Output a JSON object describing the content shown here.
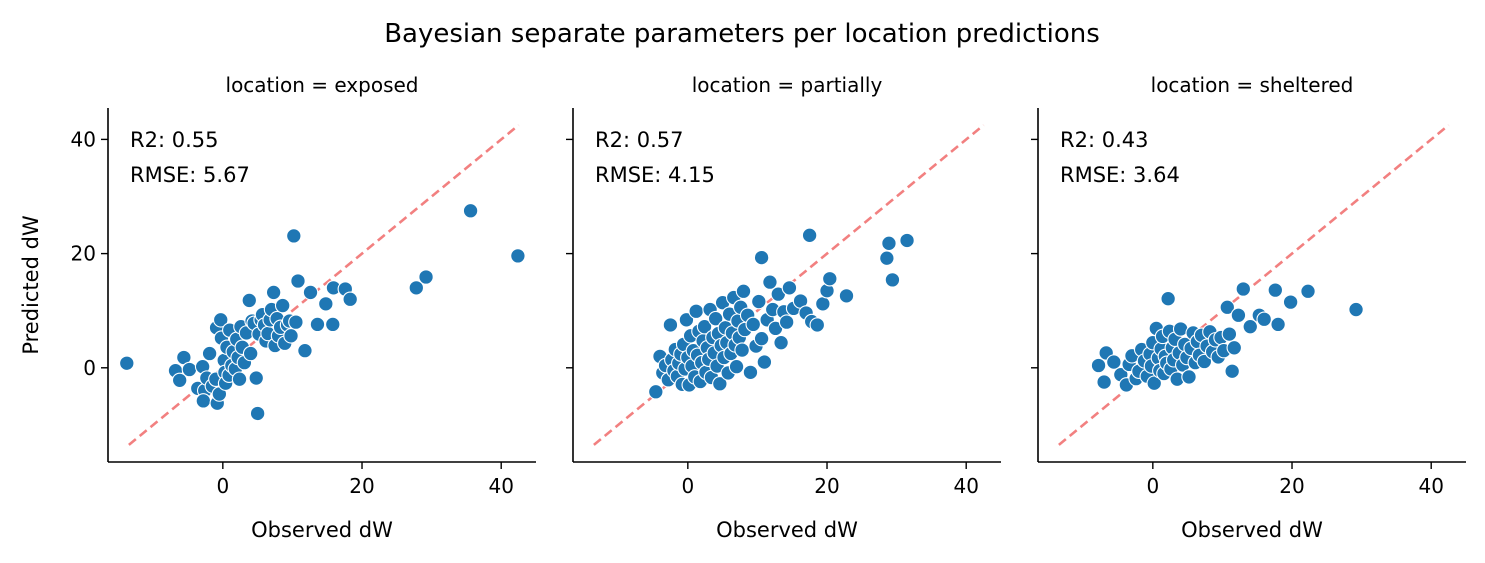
{
  "title": "Bayesian separate parameters per location predictions",
  "chart_data": {
    "type": "scatter",
    "title": "Bayesian separate parameters per location predictions",
    "xlabel": "Observed dW",
    "ylabel": "Predicted dW",
    "xlim": [
      -16.5,
      45
    ],
    "ylim": [
      -16.5,
      45.5
    ],
    "xticks": [
      0,
      20,
      40
    ],
    "yticks": [
      0,
      20,
      40
    ],
    "sharey": true,
    "grid": false,
    "reference_line": {
      "style": "dashed",
      "color": "#f28080",
      "from": [
        -13.5,
        -13.5
      ],
      "to": [
        42.5,
        42.5
      ]
    },
    "marker_color": "#1f77b4",
    "panels": [
      {
        "title": "location = exposed",
        "r2_label": "R2: 0.55",
        "rmse_label": "RMSE: 5.67",
        "points": [
          [
            -13.8,
            0.8
          ],
          [
            -6.8,
            -0.5
          ],
          [
            -6.2,
            -2.2
          ],
          [
            -5.6,
            1.8
          ],
          [
            -4.8,
            -0.3
          ],
          [
            -3.6,
            -3.6
          ],
          [
            -2.9,
            0.2
          ],
          [
            -2.6,
            -4.0
          ],
          [
            -2.8,
            -5.8
          ],
          [
            -2.3,
            -1.8
          ],
          [
            -1.9,
            2.5
          ],
          [
            -1.5,
            -3.2
          ],
          [
            -1.0,
            -2.0
          ],
          [
            -0.9,
            7.0
          ],
          [
            -0.8,
            -6.2
          ],
          [
            -0.5,
            -4.6
          ],
          [
            -0.3,
            8.4
          ],
          [
            -0.2,
            5.2
          ],
          [
            0.2,
            1.3
          ],
          [
            0.3,
            -0.8
          ],
          [
            0.4,
            -2.7
          ],
          [
            0.6,
            3.6
          ],
          [
            0.9,
            -1.3
          ],
          [
            1.0,
            6.6
          ],
          [
            1.3,
            0.4
          ],
          [
            1.5,
            2.8
          ],
          [
            1.8,
            -0.2
          ],
          [
            2.0,
            5.0
          ],
          [
            2.2,
            1.8
          ],
          [
            2.4,
            -2.0
          ],
          [
            2.6,
            7.2
          ],
          [
            2.8,
            3.6
          ],
          [
            3.1,
            0.9
          ],
          [
            3.4,
            6.1
          ],
          [
            3.8,
            11.8
          ],
          [
            4.0,
            2.5
          ],
          [
            4.2,
            8.2
          ],
          [
            4.5,
            7.8
          ],
          [
            4.8,
            -1.8
          ],
          [
            5.0,
            -8.0
          ],
          [
            5.2,
            5.9
          ],
          [
            5.5,
            8.4
          ],
          [
            5.7,
            9.3
          ],
          [
            6.0,
            7.5
          ],
          [
            6.2,
            4.7
          ],
          [
            6.5,
            6.0
          ],
          [
            6.8,
            8.4
          ],
          [
            7.0,
            10.2
          ],
          [
            7.3,
            13.2
          ],
          [
            7.5,
            3.9
          ],
          [
            7.8,
            8.6
          ],
          [
            8.0,
            5.6
          ],
          [
            8.3,
            7.1
          ],
          [
            8.6,
            10.9
          ],
          [
            8.9,
            4.3
          ],
          [
            9.3,
            7.5
          ],
          [
            9.6,
            8.2
          ],
          [
            9.8,
            5.6
          ],
          [
            10.2,
            23.1
          ],
          [
            10.5,
            8.0
          ],
          [
            10.8,
            15.2
          ],
          [
            11.8,
            3.0
          ],
          [
            12.6,
            13.2
          ],
          [
            13.6,
            7.6
          ],
          [
            14.8,
            11.2
          ],
          [
            15.8,
            7.6
          ],
          [
            15.9,
            14.0
          ],
          [
            17.6,
            13.8
          ],
          [
            18.3,
            12.0
          ],
          [
            27.8,
            14.0
          ],
          [
            29.2,
            15.9
          ],
          [
            35.6,
            27.5
          ],
          [
            42.4,
            19.6
          ]
        ]
      },
      {
        "title": "location = partially",
        "r2_label": "R2: 0.57",
        "rmse_label": "RMSE: 4.15",
        "points": [
          [
            -4.6,
            -4.2
          ],
          [
            -4.0,
            2.0
          ],
          [
            -3.6,
            -0.9
          ],
          [
            -3.2,
            0.4
          ],
          [
            -2.8,
            -2.1
          ],
          [
            -2.5,
            7.5
          ],
          [
            -2.3,
            1.4
          ],
          [
            -2.0,
            -0.5
          ],
          [
            -1.8,
            3.2
          ],
          [
            -1.5,
            -1.5
          ],
          [
            -1.3,
            0.8
          ],
          [
            -1.0,
            2.4
          ],
          [
            -0.8,
            -2.9
          ],
          [
            -0.6,
            4.1
          ],
          [
            -0.4,
            -0.2
          ],
          [
            -0.2,
            8.4
          ],
          [
            0.0,
            1.8
          ],
          [
            0.2,
            -3.0
          ],
          [
            0.4,
            5.6
          ],
          [
            0.6,
            0.3
          ],
          [
            0.8,
            3.0
          ],
          [
            1.0,
            -1.6
          ],
          [
            1.2,
            9.9
          ],
          [
            1.4,
            2.2
          ],
          [
            1.6,
            6.4
          ],
          [
            1.8,
            -2.4
          ],
          [
            2.0,
            0.9
          ],
          [
            2.2,
            4.7
          ],
          [
            2.4,
            7.2
          ],
          [
            2.6,
            -0.8
          ],
          [
            2.8,
            3.5
          ],
          [
            3.0,
            1.5
          ],
          [
            3.2,
            10.2
          ],
          [
            3.4,
            -1.7
          ],
          [
            3.6,
            5.3
          ],
          [
            3.8,
            2.6
          ],
          [
            4.0,
            8.6
          ],
          [
            4.2,
            0.3
          ],
          [
            4.4,
            6.0
          ],
          [
            4.6,
            -2.8
          ],
          [
            4.8,
            3.9
          ],
          [
            5.0,
            11.4
          ],
          [
            5.2,
            1.8
          ],
          [
            5.4,
            7.0
          ],
          [
            5.6,
            4.4
          ],
          [
            5.8,
            -0.9
          ],
          [
            6.0,
            9.4
          ],
          [
            6.2,
            2.5
          ],
          [
            6.4,
            6.1
          ],
          [
            6.6,
            12.3
          ],
          [
            6.8,
            4.0
          ],
          [
            7.0,
            0.2
          ],
          [
            7.2,
            8.2
          ],
          [
            7.4,
            5.3
          ],
          [
            7.6,
            10.6
          ],
          [
            7.8,
            3.1
          ],
          [
            8.0,
            13.4
          ],
          [
            8.2,
            6.7
          ],
          [
            8.6,
            9.2
          ],
          [
            9.0,
            -0.8
          ],
          [
            9.4,
            7.6
          ],
          [
            9.8,
            3.8
          ],
          [
            10.2,
            11.6
          ],
          [
            10.6,
            5.1
          ],
          [
            10.6,
            19.3
          ],
          [
            11.0,
            1.0
          ],
          [
            11.4,
            8.4
          ],
          [
            11.8,
            15.0
          ],
          [
            12.2,
            10.2
          ],
          [
            12.6,
            6.9
          ],
          [
            13.0,
            12.9
          ],
          [
            13.4,
            4.4
          ],
          [
            13.8,
            9.8
          ],
          [
            14.2,
            8.0
          ],
          [
            14.6,
            14.0
          ],
          [
            15.2,
            10.4
          ],
          [
            16.2,
            11.7
          ],
          [
            17.0,
            9.6
          ],
          [
            17.5,
            23.2
          ],
          [
            17.8,
            8.1
          ],
          [
            18.6,
            7.5
          ],
          [
            19.4,
            11.2
          ],
          [
            20.0,
            13.5
          ],
          [
            20.4,
            15.6
          ],
          [
            22.8,
            12.6
          ],
          [
            28.6,
            19.2
          ],
          [
            28.9,
            21.8
          ],
          [
            29.4,
            15.4
          ],
          [
            31.5,
            22.3
          ]
        ]
      },
      {
        "title": "location = sheltered",
        "r2_label": "R2: 0.43",
        "rmse_label": "RMSE: 3.64",
        "points": [
          [
            -7.8,
            0.4
          ],
          [
            -7.0,
            -2.5
          ],
          [
            -6.7,
            2.6
          ],
          [
            -5.6,
            1.0
          ],
          [
            -4.6,
            -1.2
          ],
          [
            -3.8,
            -3.0
          ],
          [
            -3.4,
            0.6
          ],
          [
            -3.0,
            2.1
          ],
          [
            -2.4,
            -1.9
          ],
          [
            -2.0,
            -0.6
          ],
          [
            -1.6,
            3.2
          ],
          [
            -1.2,
            1.2
          ],
          [
            -0.8,
            -1.5
          ],
          [
            -0.4,
            2.4
          ],
          [
            -0.2,
            0.3
          ],
          [
            0.0,
            4.4
          ],
          [
            0.2,
            -2.7
          ],
          [
            0.5,
            6.9
          ],
          [
            0.8,
            1.7
          ],
          [
            1.0,
            -0.5
          ],
          [
            1.2,
            3.3
          ],
          [
            1.4,
            5.5
          ],
          [
            1.6,
            -1.0
          ],
          [
            1.8,
            2.0
          ],
          [
            2.0,
            0.8
          ],
          [
            2.2,
            12.1
          ],
          [
            2.4,
            6.4
          ],
          [
            2.6,
            -0.2
          ],
          [
            2.8,
            3.5
          ],
          [
            3.0,
            1.4
          ],
          [
            3.2,
            5.0
          ],
          [
            3.5,
            -2.0
          ],
          [
            3.8,
            2.6
          ],
          [
            4.0,
            6.8
          ],
          [
            4.3,
            0.5
          ],
          [
            4.6,
            4.1
          ],
          [
            4.9,
            1.8
          ],
          [
            5.2,
            -1.6
          ],
          [
            5.5,
            3.4
          ],
          [
            5.8,
            6.1
          ],
          [
            6.1,
            0.9
          ],
          [
            6.4,
            4.6
          ],
          [
            6.7,
            2.2
          ],
          [
            7.0,
            5.7
          ],
          [
            7.4,
            1.1
          ],
          [
            7.8,
            3.8
          ],
          [
            8.2,
            6.3
          ],
          [
            8.6,
            2.8
          ],
          [
            9.0,
            4.9
          ],
          [
            9.4,
            1.9
          ],
          [
            9.8,
            5.3
          ],
          [
            10.2,
            3.0
          ],
          [
            10.7,
            10.6
          ],
          [
            11.0,
            5.9
          ],
          [
            11.4,
            -0.6
          ],
          [
            11.7,
            3.5
          ],
          [
            12.3,
            9.2
          ],
          [
            13.0,
            13.8
          ],
          [
            14.0,
            7.2
          ],
          [
            15.3,
            9.2
          ],
          [
            16.0,
            8.5
          ],
          [
            17.6,
            13.6
          ],
          [
            18.0,
            7.6
          ],
          [
            19.8,
            11.5
          ],
          [
            22.3,
            13.4
          ],
          [
            29.2,
            10.2
          ]
        ]
      }
    ]
  }
}
